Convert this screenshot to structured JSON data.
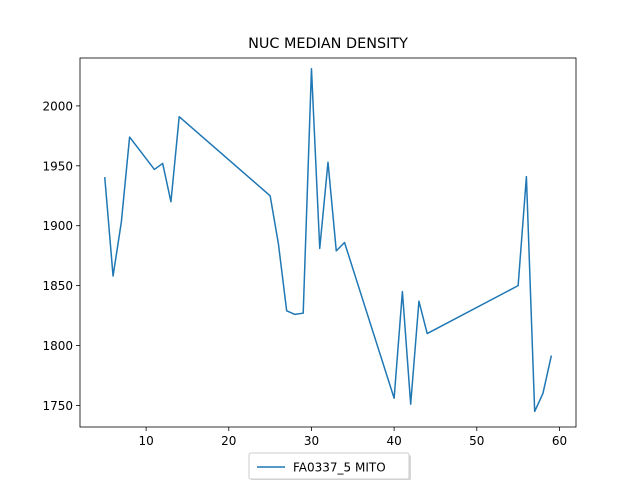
{
  "chart_data": {
    "type": "line",
    "title": "NUC MEDIAN DENSITY",
    "xlabel": "",
    "ylabel": "",
    "xlim": [
      2,
      62
    ],
    "ylim": [
      1732,
      2040
    ],
    "xticks": [
      10,
      20,
      30,
      40,
      50,
      60
    ],
    "yticks": [
      1750,
      1800,
      1850,
      1900,
      1950,
      2000
    ],
    "grid": false,
    "legend_position": "bottom-center",
    "series": [
      {
        "name": "FA0337_5 MITO",
        "color": "#1f77b4",
        "x": [
          5,
          6,
          7,
          8,
          11,
          12,
          13,
          14,
          25,
          26,
          27,
          28,
          29,
          30,
          31,
          32,
          33,
          34,
          40,
          41,
          42,
          43,
          44,
          55,
          56,
          57,
          58,
          59
        ],
        "y": [
          1940,
          1858,
          1903,
          1974,
          1947,
          1952,
          1920,
          1991,
          1925,
          1885,
          1829,
          1826,
          1827,
          2031,
          1881,
          1953,
          1879,
          1886,
          1756,
          1845,
          1751,
          1837,
          1810,
          1850,
          1941,
          1745,
          1760,
          1791
        ]
      }
    ]
  }
}
